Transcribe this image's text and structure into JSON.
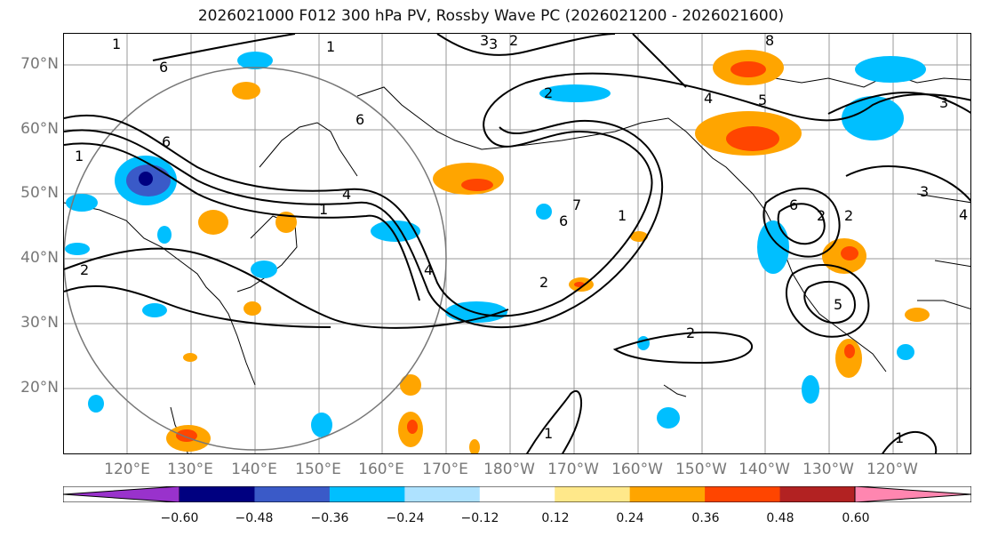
{
  "title": "2026021000 F012 300 hPa PV, Rossby Wave PC (2026021200 - 2026021600)",
  "lat_labels": [
    "70°N",
    "60°N",
    "50°N",
    "40°N",
    "30°N",
    "20°N"
  ],
  "lon_labels": [
    "120°E",
    "130°E",
    "140°E",
    "150°E",
    "160°E",
    "170°E",
    "180°W",
    "170°W",
    "160°W",
    "150°W",
    "140°W",
    "130°W",
    "120°W"
  ],
  "colorbar": {
    "colors": [
      "#9932cc",
      "#000080",
      "#3a5ac8",
      "#00bfff",
      "#aee2ff",
      "#ffffff",
      "#ffe88a",
      "#ffa500",
      "#ff4500",
      "#b22222",
      "#ff86b0"
    ],
    "ticks": [
      "−0.60",
      "−0.48",
      "−0.36",
      "−0.24",
      "−0.12",
      "0.12",
      "0.24",
      "0.36",
      "0.48",
      "0.60"
    ]
  },
  "contour_labels": [
    "1",
    "3",
    "2",
    "8",
    "6",
    "5",
    "4",
    "3",
    "1",
    "6",
    "6",
    "2",
    "7",
    "6",
    "1",
    "4",
    "1",
    "1",
    "2",
    "2",
    "6",
    "2",
    "3",
    "4",
    "2",
    "5",
    "2",
    "1",
    "1",
    "4",
    "3"
  ]
}
